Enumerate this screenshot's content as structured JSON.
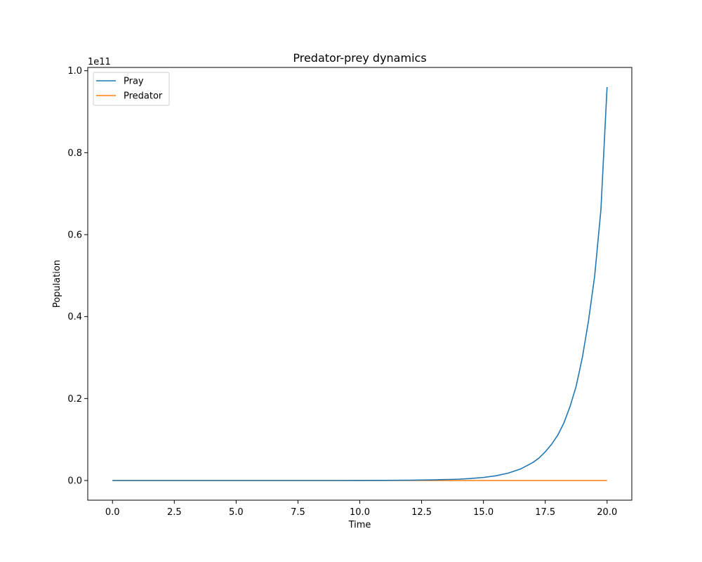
{
  "chart_data": {
    "type": "line",
    "title": "Predator-prey dynamics",
    "xlabel": "Time",
    "ylabel": "Population",
    "y_offset_label": "1e11",
    "y_scale_factor": 100000000000,
    "xlim": [
      -1.0,
      21.0
    ],
    "ylim": [
      -0.048,
      1.008
    ],
    "x_ticks": [
      0.0,
      2.5,
      5.0,
      7.5,
      10.0,
      12.5,
      15.0,
      17.5,
      20.0
    ],
    "x_tick_labels": [
      "0.0",
      "2.5",
      "5.0",
      "7.5",
      "10.0",
      "12.5",
      "15.0",
      "17.5",
      "20.0"
    ],
    "y_ticks": [
      0.0,
      0.2,
      0.4,
      0.6,
      0.8,
      1.0
    ],
    "y_tick_labels": [
      "0.0",
      "0.2",
      "0.4",
      "0.6",
      "0.8",
      "1.0"
    ],
    "grid": false,
    "legend_position": "upper-left",
    "series": [
      {
        "name": "Pray",
        "color": "#1f77b4",
        "x": [
          0,
          1,
          2,
          3,
          4,
          5,
          6,
          7,
          8,
          9,
          10,
          11,
          12,
          13,
          14,
          14.5,
          15,
          15.5,
          16,
          16.5,
          17,
          17.25,
          17.5,
          17.75,
          18,
          18.25,
          18.5,
          18.75,
          19,
          19.25,
          19.5,
          19.75,
          20
        ],
        "y": [
          0,
          0,
          0,
          0,
          0,
          0,
          0,
          0,
          0,
          0,
          0.0001,
          0.0003,
          0.0008,
          0.0016,
          0.0032,
          0.005,
          0.0075,
          0.0115,
          0.018,
          0.028,
          0.044,
          0.055,
          0.07,
          0.088,
          0.11,
          0.14,
          0.18,
          0.23,
          0.3,
          0.39,
          0.5,
          0.66,
          0.96
        ]
      },
      {
        "name": "Predator",
        "color": "#ff7f0e",
        "x": [
          0,
          5,
          10,
          15,
          20
        ],
        "y": [
          0,
          0,
          0,
          0,
          0
        ]
      }
    ]
  }
}
